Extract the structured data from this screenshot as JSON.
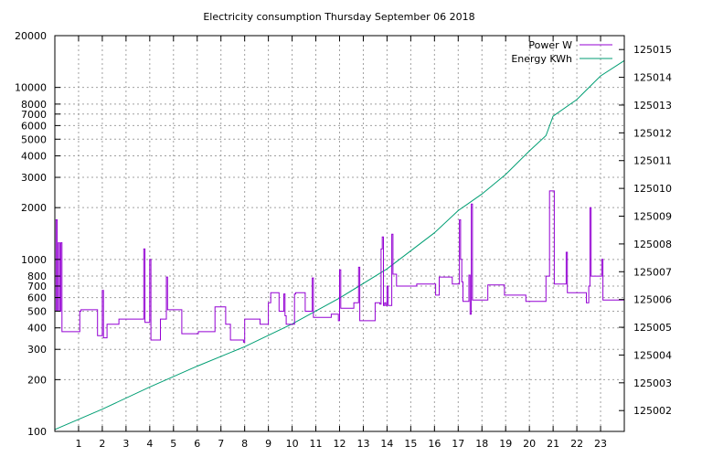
{
  "chart_data": {
    "type": "line",
    "title": "Electricity consumption Thursday September 06 2018",
    "x": {
      "range": [
        0,
        24
      ],
      "tick_values": [
        1,
        2,
        3,
        4,
        5,
        6,
        7,
        8,
        9,
        10,
        11,
        12,
        13,
        14,
        15,
        16,
        17,
        18,
        19,
        20,
        21,
        22,
        23
      ],
      "tick_labels": [
        "1",
        "2",
        "3",
        "4",
        "5",
        "6",
        "7",
        "8",
        "9",
        "10",
        "11",
        "12",
        "13",
        "14",
        "15",
        "16",
        "17",
        "18",
        "19",
        "20",
        "21",
        "22",
        "23"
      ]
    },
    "y_left": {
      "scale": "log",
      "range": [
        100,
        20000
      ],
      "tick_values": [
        100,
        200,
        300,
        400,
        500,
        600,
        700,
        800,
        1000,
        2000,
        3000,
        4000,
        5000,
        6000,
        7000,
        8000,
        10000,
        20000
      ],
      "tick_labels": [
        "100",
        "200",
        "300",
        "400",
        "500",
        "600",
        "700",
        "800",
        "1000",
        "2000",
        "3000",
        "4000",
        "5000",
        "6000",
        "7000",
        "8000",
        "10000",
        "20000"
      ],
      "grid": true
    },
    "y_right": {
      "scale": "linear",
      "range": [
        125001.25,
        125015.5
      ],
      "tick_values": [
        125002,
        125003,
        125004,
        125005,
        125006,
        125007,
        125008,
        125009,
        125010,
        125011,
        125012,
        125013,
        125014,
        125015
      ],
      "tick_labels": [
        "125002",
        "125003",
        "125004",
        "125005",
        "125006",
        "125007",
        "125008",
        "125009",
        "125010",
        "125011",
        "125012",
        "125013",
        "125014",
        "125015"
      ]
    },
    "legend": {
      "placement": "top-right"
    },
    "colors": {
      "power": "#9400d3",
      "energy": "#009e73"
    },
    "series": [
      {
        "name": "Power W",
        "axis": "left",
        "step": true,
        "points": [
          [
            0.0,
            500
          ],
          [
            0.05,
            1700
          ],
          [
            0.1,
            500
          ],
          [
            0.15,
            1250
          ],
          [
            0.2,
            500
          ],
          [
            0.25,
            1250
          ],
          [
            0.3,
            380
          ],
          [
            1.0,
            380
          ],
          [
            1.05,
            500
          ],
          [
            1.1,
            510
          ],
          [
            1.75,
            510
          ],
          [
            1.8,
            360
          ],
          [
            1.95,
            360
          ],
          [
            2.0,
            660
          ],
          [
            2.05,
            350
          ],
          [
            2.15,
            350
          ],
          [
            2.2,
            420
          ],
          [
            2.65,
            420
          ],
          [
            2.7,
            450
          ],
          [
            3.7,
            450
          ],
          [
            3.75,
            1150
          ],
          [
            3.8,
            430
          ],
          [
            3.95,
            430
          ],
          [
            4.0,
            1000
          ],
          [
            4.05,
            340
          ],
          [
            4.4,
            340
          ],
          [
            4.45,
            450
          ],
          [
            4.65,
            450
          ],
          [
            4.7,
            790
          ],
          [
            4.75,
            510
          ],
          [
            5.3,
            510
          ],
          [
            5.35,
            370
          ],
          [
            6.0,
            370
          ],
          [
            6.05,
            380
          ],
          [
            6.7,
            380
          ],
          [
            6.75,
            530
          ],
          [
            7.15,
            530
          ],
          [
            7.2,
            420
          ],
          [
            7.35,
            420
          ],
          [
            7.4,
            340
          ],
          [
            7.9,
            340
          ],
          [
            7.95,
            330
          ],
          [
            8.0,
            450
          ],
          [
            8.6,
            450
          ],
          [
            8.65,
            420
          ],
          [
            8.95,
            420
          ],
          [
            9.0,
            560
          ],
          [
            9.1,
            640
          ],
          [
            9.4,
            640
          ],
          [
            9.45,
            500
          ],
          [
            9.6,
            500
          ],
          [
            9.65,
            630
          ],
          [
            9.7,
            470
          ],
          [
            9.75,
            420
          ],
          [
            10.05,
            420
          ],
          [
            10.1,
            630
          ],
          [
            10.15,
            640
          ],
          [
            10.5,
            640
          ],
          [
            10.55,
            500
          ],
          [
            10.8,
            500
          ],
          [
            10.85,
            780
          ],
          [
            10.9,
            460
          ],
          [
            11.6,
            460
          ],
          [
            11.65,
            480
          ],
          [
            11.9,
            480
          ],
          [
            11.95,
            440
          ],
          [
            12.0,
            870
          ],
          [
            12.05,
            520
          ],
          [
            12.55,
            520
          ],
          [
            12.6,
            560
          ],
          [
            12.75,
            560
          ],
          [
            12.8,
            900
          ],
          [
            12.85,
            440
          ],
          [
            13.45,
            440
          ],
          [
            13.5,
            560
          ],
          [
            13.7,
            550
          ],
          [
            13.75,
            1150
          ],
          [
            13.8,
            1350
          ],
          [
            13.85,
            540
          ],
          [
            13.9,
            560
          ],
          [
            13.95,
            540
          ],
          [
            14.0,
            700
          ],
          [
            14.05,
            540
          ],
          [
            14.15,
            540
          ],
          [
            14.2,
            1400
          ],
          [
            14.25,
            820
          ],
          [
            14.35,
            820
          ],
          [
            14.4,
            700
          ],
          [
            15.2,
            700
          ],
          [
            15.25,
            720
          ],
          [
            16.0,
            720
          ],
          [
            16.05,
            620
          ],
          [
            16.15,
            620
          ],
          [
            16.2,
            790
          ],
          [
            16.7,
            790
          ],
          [
            16.75,
            720
          ],
          [
            17.0,
            720
          ],
          [
            17.05,
            1700
          ],
          [
            17.1,
            1000
          ],
          [
            17.15,
            740
          ],
          [
            17.2,
            570
          ],
          [
            17.4,
            570
          ],
          [
            17.45,
            810
          ],
          [
            17.5,
            480
          ],
          [
            17.55,
            2100
          ],
          [
            17.6,
            580
          ],
          [
            18.2,
            580
          ],
          [
            18.25,
            710
          ],
          [
            18.9,
            710
          ],
          [
            18.95,
            620
          ],
          [
            19.8,
            620
          ],
          [
            19.85,
            570
          ],
          [
            20.65,
            570
          ],
          [
            20.7,
            800
          ],
          [
            20.8,
            800
          ],
          [
            20.85,
            2500
          ],
          [
            21.0,
            2500
          ],
          [
            21.05,
            720
          ],
          [
            21.5,
            720
          ],
          [
            21.55,
            1100
          ],
          [
            21.6,
            640
          ],
          [
            22.35,
            640
          ],
          [
            22.4,
            560
          ],
          [
            22.45,
            560
          ],
          [
            22.5,
            700
          ],
          [
            22.55,
            2000
          ],
          [
            22.6,
            800
          ],
          [
            23.0,
            800
          ],
          [
            23.05,
            1000
          ],
          [
            23.1,
            580
          ],
          [
            24.0,
            580
          ]
        ]
      },
      {
        "name": "Energy KWh",
        "axis": "right",
        "step": false,
        "points": [
          [
            0,
            125001.32
          ],
          [
            2,
            125002.05
          ],
          [
            4,
            125002.85
          ],
          [
            6,
            125003.6
          ],
          [
            8,
            125004.3
          ],
          [
            10,
            125005.12
          ],
          [
            12,
            125006.05
          ],
          [
            14,
            125007.1
          ],
          [
            16,
            125008.4
          ],
          [
            17,
            125009.2
          ],
          [
            18,
            125009.8
          ],
          [
            19,
            125010.5
          ],
          [
            20,
            125011.35
          ],
          [
            20.7,
            125011.9
          ],
          [
            21,
            125012.6
          ],
          [
            22,
            125013.2
          ],
          [
            23,
            125014.05
          ],
          [
            24,
            125014.6
          ]
        ]
      }
    ]
  }
}
